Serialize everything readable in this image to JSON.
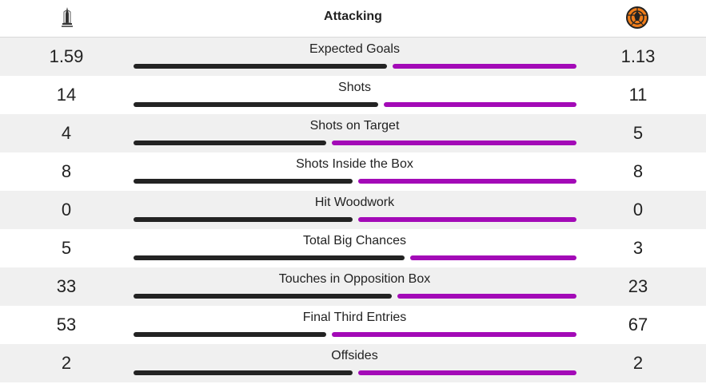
{
  "header": {
    "title": "Attacking"
  },
  "teams": {
    "home": {
      "crest_icon": "home-team-crest-icon"
    },
    "away": {
      "crest_icon": "away-team-crest-icon"
    }
  },
  "colors": {
    "home_bar": "#232323",
    "away_bar": "#a30ab7",
    "row_shade": "#f0f0f0"
  },
  "stats": [
    {
      "label": "Expected Goals",
      "home": "1.59",
      "away": "1.13",
      "home_share": 0.58
    },
    {
      "label": "Shots",
      "home": "14",
      "away": "11",
      "home_share": 0.56
    },
    {
      "label": "Shots on Target",
      "home": "4",
      "away": "5",
      "home_share": 0.44
    },
    {
      "label": "Shots Inside the Box",
      "home": "8",
      "away": "8",
      "home_share": 0.5
    },
    {
      "label": "Hit Woodwork",
      "home": "0",
      "away": "0",
      "home_share": 0.5
    },
    {
      "label": "Total Big Chances",
      "home": "5",
      "away": "3",
      "home_share": 0.62
    },
    {
      "label": "Touches in Opposition Box",
      "home": "33",
      "away": "23",
      "home_share": 0.59
    },
    {
      "label": "Final Third Entries",
      "home": "53",
      "away": "67",
      "home_share": 0.44
    },
    {
      "label": "Offsides",
      "home": "2",
      "away": "2",
      "home_share": 0.5
    }
  ]
}
